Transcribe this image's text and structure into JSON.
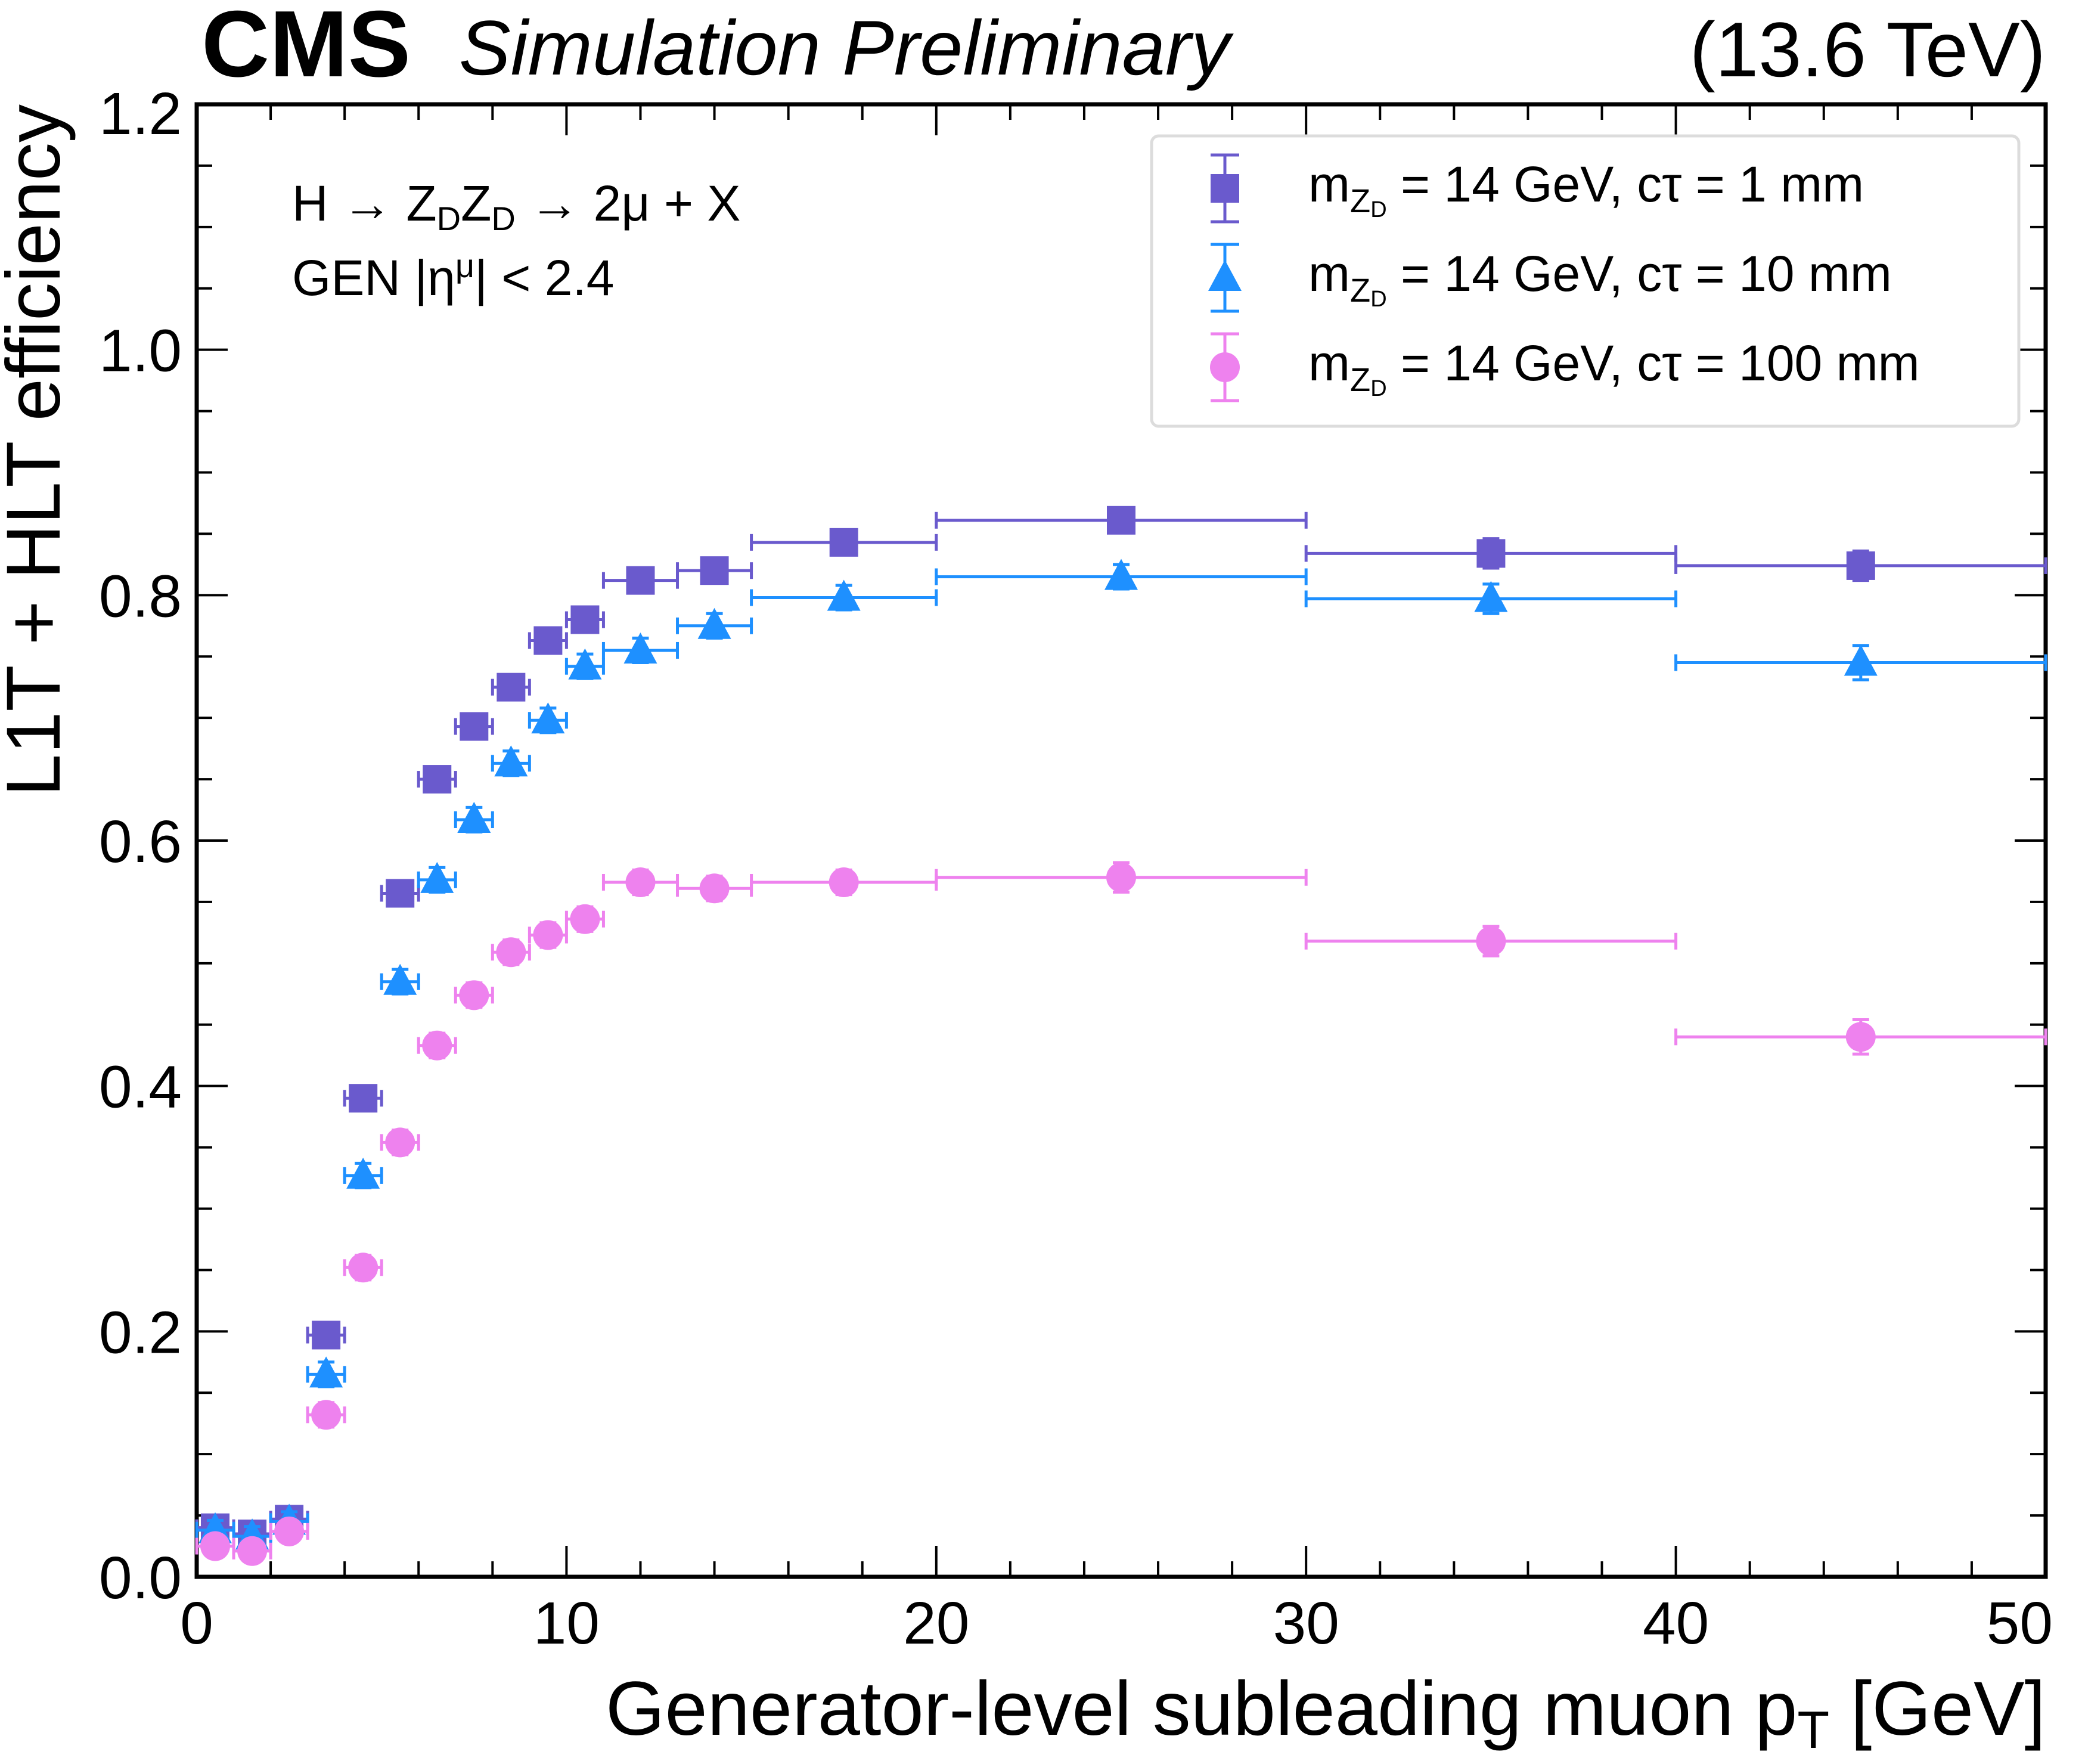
{
  "chart_data": {
    "type": "scatter",
    "experiment": "CMS",
    "status": "Simulation Preliminary",
    "energy": "(13.6 TeV)",
    "xlabel": "Generator-level subleading muon p",
    "xlabel_sub": "T",
    "xlabel_unit": " [GeV]",
    "ylabel": "L1T + HLT efficiency",
    "xlim": [
      0,
      50
    ],
    "ylim": [
      0,
      1.2
    ],
    "xticks": [
      "0",
      "10",
      "20",
      "30",
      "40",
      "50"
    ],
    "yticks": [
      "0.0",
      "0.2",
      "0.4",
      "0.6",
      "0.8",
      "1.0",
      "1.2"
    ],
    "annotation": {
      "process": "H → Z",
      "process_parts": [
        "H → Z",
        "D",
        "Z",
        "D",
        " → 2μ + X"
      ],
      "cut": "GEN |η",
      "cut_parts": [
        "GEN |η",
        "μ",
        "| < 2.4"
      ]
    },
    "legend_position": "top-right",
    "series": [
      {
        "name": "m_ZD = 14 GeV, cτ = 1 mm",
        "label_parts": [
          "m",
          "Z",
          "D",
          " = 14 GeV, cτ = 1 mm"
        ],
        "marker": "square",
        "color": "#6A5ACD",
        "points": [
          {
            "x": 0.5,
            "xlo": 0,
            "xhi": 1,
            "y": 0.04,
            "yerr": 0.008
          },
          {
            "x": 1.5,
            "xlo": 1,
            "xhi": 2,
            "y": 0.035,
            "yerr": 0.008
          },
          {
            "x": 2.5,
            "xlo": 2,
            "xhi": 3,
            "y": 0.047,
            "yerr": 0.008
          },
          {
            "x": 3.5,
            "xlo": 3,
            "xhi": 4,
            "y": 0.197,
            "yerr": 0.01
          },
          {
            "x": 4.5,
            "xlo": 4,
            "xhi": 5,
            "y": 0.39,
            "yerr": 0.01
          },
          {
            "x": 5.5,
            "xlo": 5,
            "xhi": 6,
            "y": 0.557,
            "yerr": 0.01
          },
          {
            "x": 6.5,
            "xlo": 6,
            "xhi": 7,
            "y": 0.65,
            "yerr": 0.01
          },
          {
            "x": 7.5,
            "xlo": 7,
            "xhi": 8,
            "y": 0.693,
            "yerr": 0.01
          },
          {
            "x": 8.5,
            "xlo": 8,
            "xhi": 9,
            "y": 0.725,
            "yerr": 0.01
          },
          {
            "x": 9.5,
            "xlo": 9,
            "xhi": 10,
            "y": 0.763,
            "yerr": 0.01
          },
          {
            "x": 10.5,
            "xlo": 10,
            "xhi": 11,
            "y": 0.78,
            "yerr": 0.01
          },
          {
            "x": 12,
            "xlo": 11,
            "xhi": 13,
            "y": 0.812,
            "yerr": 0.01
          },
          {
            "x": 14,
            "xlo": 13,
            "xhi": 15,
            "y": 0.82,
            "yerr": 0.01
          },
          {
            "x": 17.5,
            "xlo": 15,
            "xhi": 20,
            "y": 0.843,
            "yerr": 0.01
          },
          {
            "x": 25,
            "xlo": 20,
            "xhi": 30,
            "y": 0.861,
            "yerr": 0.01
          },
          {
            "x": 35,
            "xlo": 30,
            "xhi": 40,
            "y": 0.834,
            "yerr": 0.012
          },
          {
            "x": 45,
            "xlo": 40,
            "xhi": 50,
            "y": 0.824,
            "yerr": 0.012
          }
        ]
      },
      {
        "name": "m_ZD = 14 GeV, cτ = 10 mm",
        "label_parts": [
          "m",
          "Z",
          "D",
          " = 14 GeV, cτ = 10 mm"
        ],
        "marker": "triangle",
        "color": "#1E90FF",
        "points": [
          {
            "x": 0.5,
            "xlo": 0,
            "xhi": 1,
            "y": 0.038,
            "yerr": 0.008
          },
          {
            "x": 1.5,
            "xlo": 1,
            "xhi": 2,
            "y": 0.033,
            "yerr": 0.008
          },
          {
            "x": 2.5,
            "xlo": 2,
            "xhi": 3,
            "y": 0.045,
            "yerr": 0.008
          },
          {
            "x": 3.5,
            "xlo": 3,
            "xhi": 4,
            "y": 0.165,
            "yerr": 0.01
          },
          {
            "x": 4.5,
            "xlo": 4,
            "xhi": 5,
            "y": 0.327,
            "yerr": 0.01
          },
          {
            "x": 5.5,
            "xlo": 5,
            "xhi": 6,
            "y": 0.485,
            "yerr": 0.01
          },
          {
            "x": 6.5,
            "xlo": 6,
            "xhi": 7,
            "y": 0.568,
            "yerr": 0.01
          },
          {
            "x": 7.5,
            "xlo": 7,
            "xhi": 8,
            "y": 0.617,
            "yerr": 0.01
          },
          {
            "x": 8.5,
            "xlo": 8,
            "xhi": 9,
            "y": 0.663,
            "yerr": 0.01
          },
          {
            "x": 9.5,
            "xlo": 9,
            "xhi": 10,
            "y": 0.698,
            "yerr": 0.01
          },
          {
            "x": 10.5,
            "xlo": 10,
            "xhi": 11,
            "y": 0.742,
            "yerr": 0.01
          },
          {
            "x": 12,
            "xlo": 11,
            "xhi": 13,
            "y": 0.755,
            "yerr": 0.01
          },
          {
            "x": 14,
            "xlo": 13,
            "xhi": 15,
            "y": 0.775,
            "yerr": 0.01
          },
          {
            "x": 17.5,
            "xlo": 15,
            "xhi": 20,
            "y": 0.798,
            "yerr": 0.01
          },
          {
            "x": 25,
            "xlo": 20,
            "xhi": 30,
            "y": 0.815,
            "yerr": 0.01
          },
          {
            "x": 35,
            "xlo": 30,
            "xhi": 40,
            "y": 0.797,
            "yerr": 0.012
          },
          {
            "x": 45,
            "xlo": 40,
            "xhi": 50,
            "y": 0.745,
            "yerr": 0.014
          }
        ]
      },
      {
        "name": "m_ZD = 14 GeV, cτ = 100 mm",
        "label_parts": [
          "m",
          "Z",
          "D",
          " = 14 GeV, cτ = 100 mm"
        ],
        "marker": "circle",
        "color": "#EE82EE",
        "points": [
          {
            "x": 0.5,
            "xlo": 0,
            "xhi": 1,
            "y": 0.025,
            "yerr": 0.008
          },
          {
            "x": 1.5,
            "xlo": 1,
            "xhi": 2,
            "y": 0.021,
            "yerr": 0.008
          },
          {
            "x": 2.5,
            "xlo": 2,
            "xhi": 3,
            "y": 0.037,
            "yerr": 0.008
          },
          {
            "x": 3.5,
            "xlo": 3,
            "xhi": 4,
            "y": 0.132,
            "yerr": 0.01
          },
          {
            "x": 4.5,
            "xlo": 4,
            "xhi": 5,
            "y": 0.252,
            "yerr": 0.01
          },
          {
            "x": 5.5,
            "xlo": 5,
            "xhi": 6,
            "y": 0.354,
            "yerr": 0.01
          },
          {
            "x": 6.5,
            "xlo": 6,
            "xhi": 7,
            "y": 0.433,
            "yerr": 0.01
          },
          {
            "x": 7.5,
            "xlo": 7,
            "xhi": 8,
            "y": 0.474,
            "yerr": 0.01
          },
          {
            "x": 8.5,
            "xlo": 8,
            "xhi": 9,
            "y": 0.509,
            "yerr": 0.01
          },
          {
            "x": 9.5,
            "xlo": 9,
            "xhi": 10,
            "y": 0.523,
            "yerr": 0.01
          },
          {
            "x": 10.5,
            "xlo": 10,
            "xhi": 11,
            "y": 0.536,
            "yerr": 0.01
          },
          {
            "x": 12,
            "xlo": 11,
            "xhi": 13,
            "y": 0.566,
            "yerr": 0.01
          },
          {
            "x": 14,
            "xlo": 13,
            "xhi": 15,
            "y": 0.561,
            "yerr": 0.01
          },
          {
            "x": 17.5,
            "xlo": 15,
            "xhi": 20,
            "y": 0.566,
            "yerr": 0.01
          },
          {
            "x": 25,
            "xlo": 20,
            "xhi": 30,
            "y": 0.57,
            "yerr": 0.012
          },
          {
            "x": 35,
            "xlo": 30,
            "xhi": 40,
            "y": 0.518,
            "yerr": 0.012
          },
          {
            "x": 45,
            "xlo": 40,
            "xhi": 50,
            "y": 0.44,
            "yerr": 0.014
          }
        ]
      }
    ]
  }
}
